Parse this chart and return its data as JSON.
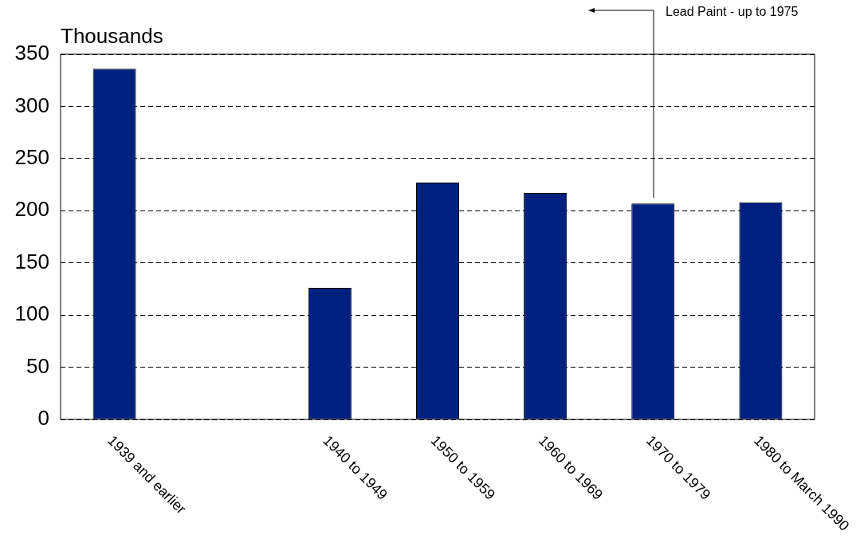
{
  "chart_data": {
    "type": "bar",
    "ylabel": "Thousands",
    "categories": [
      "1939 and earlier",
      null,
      "1940 to 1949",
      "1950 to 1959",
      "1960 to 1969",
      "1970 to 1979",
      "1980 to March 1990"
    ],
    "values": [
      336,
      null,
      126,
      227,
      217,
      207,
      208
    ],
    "color": "#00207f",
    "ylim": [
      0,
      350
    ],
    "yticks": [
      0,
      50,
      100,
      150,
      200,
      250,
      300,
      350
    ],
    "grid": "y",
    "legend": false,
    "annotations": [
      "Lead Paint - up to 1975"
    ]
  }
}
